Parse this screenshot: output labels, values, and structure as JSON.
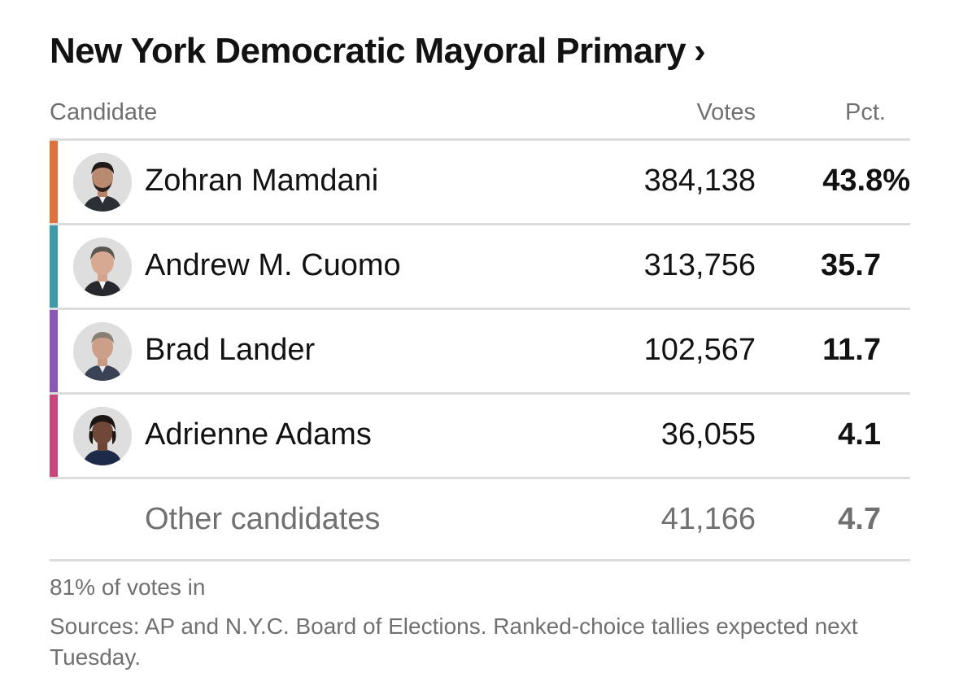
{
  "title": "New York Democratic Mayoral Primary",
  "title_chevron": "›",
  "columns": {
    "candidate": "Candidate",
    "votes": "Votes",
    "pct": "Pct."
  },
  "candidates": [
    {
      "name": "Zohran Mamdani",
      "votes": "384,138",
      "pct": "43.8%",
      "color": "#e0703c",
      "avatar_icon": "candidate-photo"
    },
    {
      "name": "Andrew M. Cuomo",
      "votes": "313,756",
      "pct": "35.7",
      "color": "#3d9aa8",
      "avatar_icon": "candidate-photo"
    },
    {
      "name": "Brad Lander",
      "votes": "102,567",
      "pct": "11.7",
      "color": "#8a57b8",
      "avatar_icon": "candidate-photo"
    },
    {
      "name": "Adrienne Adams",
      "votes": "36,055",
      "pct": "4.1",
      "color": "#c8457e",
      "avatar_icon": "candidate-photo"
    }
  ],
  "other": {
    "name": "Other candidates",
    "votes": "41,166",
    "pct": "4.7"
  },
  "reporting": "81% of votes in",
  "sources": "Sources: AP and N.Y.C. Board of Elections. Ranked-choice tallies expected next Tuesday."
}
